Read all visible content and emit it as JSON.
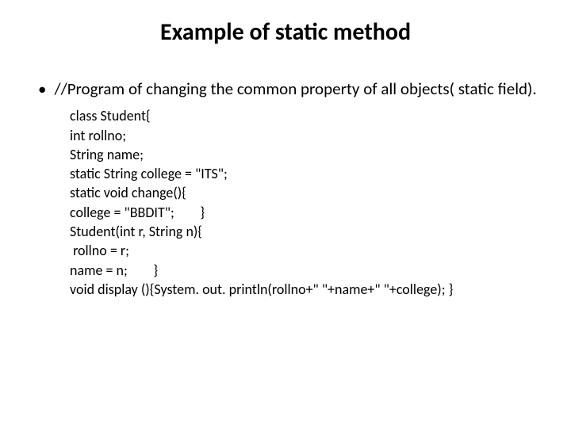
{
  "title": {
    "text": "Example of static method",
    "fontsize": 30,
    "color": "#000000",
    "weight": "700"
  },
  "bullet": {
    "marker": "•",
    "text": "//Program of changing the common property of all objects( static field).",
    "fontsize": 21,
    "color": "#000000"
  },
  "code": {
    "fontsize": 18,
    "color": "#000000",
    "lines": [
      "class Student{",
      "int rollno;",
      "String name;",
      "static String college = \"ITS\";",
      "static void change(){",
      "college = \"BBDIT\";        }",
      "Student(int r, String n){",
      " rollno = r;",
      "name = n;        }",
      "void display (){System. out. println(rollno+\" \"+name+\" \"+college); }"
    ]
  },
  "background_color": "#ffffff"
}
